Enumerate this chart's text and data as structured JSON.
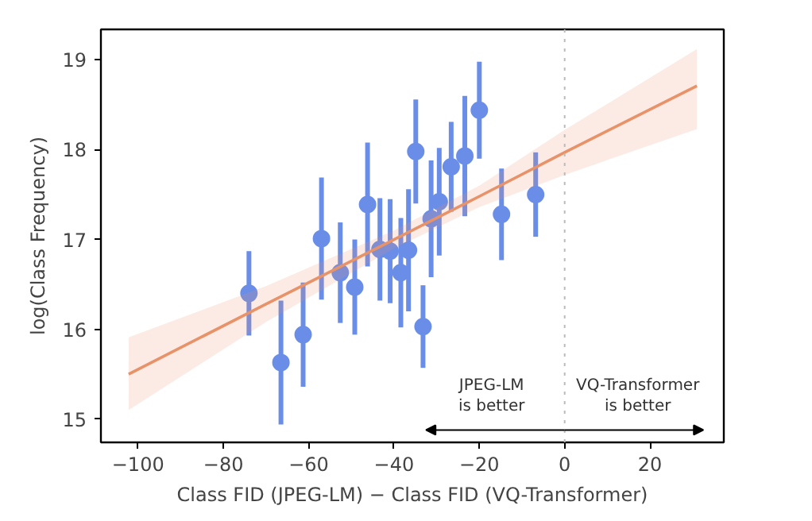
{
  "chart_data": {
    "type": "scatter",
    "xlabel": "Class FID (JPEG-LM) − Class FID (VQ-Transformer)",
    "ylabel": "log(Class Frequency)",
    "xlim": [
      -108.7,
      37.3
    ],
    "ylim": [
      14.74,
      19.34
    ],
    "xticks": [
      -100,
      -80,
      -60,
      -40,
      -20,
      0,
      20
    ],
    "yticks": [
      15,
      16,
      17,
      18,
      19
    ],
    "grid": false,
    "series": [
      {
        "marker": "circle",
        "color": "#6a8ee8",
        "x": [
          -74.0,
          -66.5,
          -61.3,
          -57.0,
          -52.6,
          -49.2,
          -46.2,
          -43.3,
          -40.9,
          -38.4,
          -36.6,
          -34.9,
          -33.2,
          -31.3,
          -29.4,
          -26.6,
          -23.4,
          -20.0,
          -14.8,
          -6.8
        ],
        "values": [
          16.4,
          15.63,
          15.94,
          17.01,
          16.63,
          16.47,
          17.39,
          16.89,
          16.87,
          16.63,
          16.88,
          17.98,
          16.03,
          17.23,
          17.42,
          17.81,
          17.93,
          18.44,
          17.28,
          17.5
        ],
        "errors": [
          0.47,
          0.69,
          0.58,
          0.68,
          0.56,
          0.53,
          0.69,
          0.57,
          0.58,
          0.61,
          0.68,
          0.58,
          0.46,
          0.65,
          0.6,
          0.5,
          0.67,
          0.54,
          0.51,
          0.47
        ]
      },
      {
        "type": "line",
        "color": "#e8926a",
        "x": [
          -102.2,
          -70,
          -40,
          -20,
          0,
          31.0
        ],
        "values": [
          15.5,
          16.28,
          17.0,
          17.48,
          17.97,
          18.71
        ],
        "lower": [
          15.1,
          16.08,
          16.9,
          17.36,
          17.72,
          18.23
        ],
        "upper": [
          15.91,
          16.48,
          17.1,
          17.6,
          18.22,
          19.12
        ]
      }
    ],
    "ref_lines": [
      {
        "axis": "x",
        "value": 0,
        "color": "#bbbbbb",
        "line_style": "dotted"
      }
    ],
    "annotations": [
      "JPEG-LM\nis better",
      "VQ-Transformer\nis better"
    ]
  }
}
